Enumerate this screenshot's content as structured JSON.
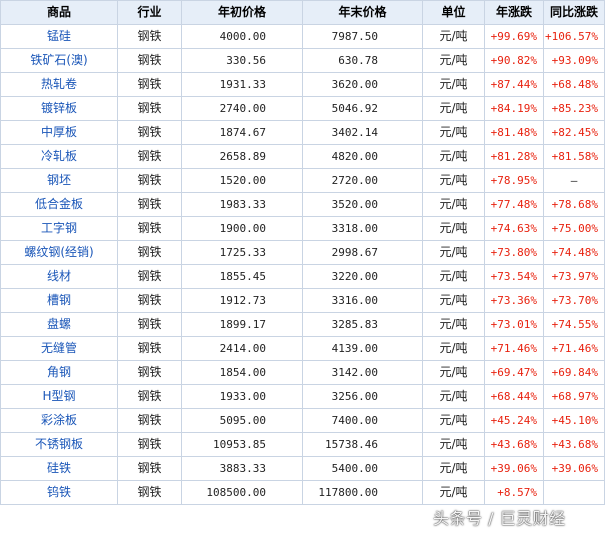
{
  "table": {
    "headers": {
      "name": "商品",
      "industry": "行业",
      "start_price": "年初价格",
      "end_price": "年末价格",
      "unit": "单位",
      "annual_change": "年涨跌",
      "yoy_change": "同比涨跌"
    },
    "rows": [
      {
        "name": "锰硅",
        "industry": "钢铁",
        "start": "4000.00",
        "end": "7987.50",
        "unit": "元/吨",
        "change": "+99.69%",
        "yoy": "+106.57%"
      },
      {
        "name": "铁矿石(澳)",
        "industry": "钢铁",
        "start": "330.56",
        "end": "630.78",
        "unit": "元/吨",
        "change": "+90.82%",
        "yoy": "+93.09%"
      },
      {
        "name": "热轧卷",
        "industry": "钢铁",
        "start": "1931.33",
        "end": "3620.00",
        "unit": "元/吨",
        "change": "+87.44%",
        "yoy": "+68.48%"
      },
      {
        "name": "镀锌板",
        "industry": "钢铁",
        "start": "2740.00",
        "end": "5046.92",
        "unit": "元/吨",
        "change": "+84.19%",
        "yoy": "+85.23%"
      },
      {
        "name": "中厚板",
        "industry": "钢铁",
        "start": "1874.67",
        "end": "3402.14",
        "unit": "元/吨",
        "change": "+81.48%",
        "yoy": "+82.45%"
      },
      {
        "name": "冷轧板",
        "industry": "钢铁",
        "start": "2658.89",
        "end": "4820.00",
        "unit": "元/吨",
        "change": "+81.28%",
        "yoy": "+81.58%"
      },
      {
        "name": "钢坯",
        "industry": "钢铁",
        "start": "1520.00",
        "end": "2720.00",
        "unit": "元/吨",
        "change": "+78.95%",
        "yoy": "—"
      },
      {
        "name": "低合金板",
        "industry": "钢铁",
        "start": "1983.33",
        "end": "3520.00",
        "unit": "元/吨",
        "change": "+77.48%",
        "yoy": "+78.68%"
      },
      {
        "name": "工字钢",
        "industry": "钢铁",
        "start": "1900.00",
        "end": "3318.00",
        "unit": "元/吨",
        "change": "+74.63%",
        "yoy": "+75.00%"
      },
      {
        "name": "螺纹钢(经销)",
        "industry": "钢铁",
        "start": "1725.33",
        "end": "2998.67",
        "unit": "元/吨",
        "change": "+73.80%",
        "yoy": "+74.48%"
      },
      {
        "name": "线材",
        "industry": "钢铁",
        "start": "1855.45",
        "end": "3220.00",
        "unit": "元/吨",
        "change": "+73.54%",
        "yoy": "+73.97%"
      },
      {
        "name": "槽钢",
        "industry": "钢铁",
        "start": "1912.73",
        "end": "3316.00",
        "unit": "元/吨",
        "change": "+73.36%",
        "yoy": "+73.70%"
      },
      {
        "name": "盘螺",
        "industry": "钢铁",
        "start": "1899.17",
        "end": "3285.83",
        "unit": "元/吨",
        "change": "+73.01%",
        "yoy": "+74.55%"
      },
      {
        "name": "无缝管",
        "industry": "钢铁",
        "start": "2414.00",
        "end": "4139.00",
        "unit": "元/吨",
        "change": "+71.46%",
        "yoy": "+71.46%"
      },
      {
        "name": "角钢",
        "industry": "钢铁",
        "start": "1854.00",
        "end": "3142.00",
        "unit": "元/吨",
        "change": "+69.47%",
        "yoy": "+69.84%"
      },
      {
        "name": "H型钢",
        "industry": "钢铁",
        "start": "1933.00",
        "end": "3256.00",
        "unit": "元/吨",
        "change": "+68.44%",
        "yoy": "+68.97%"
      },
      {
        "name": "彩涂板",
        "industry": "钢铁",
        "start": "5095.00",
        "end": "7400.00",
        "unit": "元/吨",
        "change": "+45.24%",
        "yoy": "+45.10%"
      },
      {
        "name": "不锈钢板",
        "industry": "钢铁",
        "start": "10953.85",
        "end": "15738.46",
        "unit": "元/吨",
        "change": "+43.68%",
        "yoy": "+43.68%"
      },
      {
        "name": "硅铁",
        "industry": "钢铁",
        "start": "3883.33",
        "end": "5400.00",
        "unit": "元/吨",
        "change": "+39.06%",
        "yoy": "+39.06%"
      },
      {
        "name": "钨铁",
        "industry": "钢铁",
        "start": "108500.00",
        "end": "117800.00",
        "unit": "元/吨",
        "change": "+8.57%",
        "yoy": ""
      }
    ]
  },
  "watermark": "头条号 / 巨灵财经",
  "colors": {
    "header_bg": "#e6eef8",
    "border": "#c9d4e3",
    "link_blue": "#1a56b8",
    "up_red": "#e8220f"
  }
}
